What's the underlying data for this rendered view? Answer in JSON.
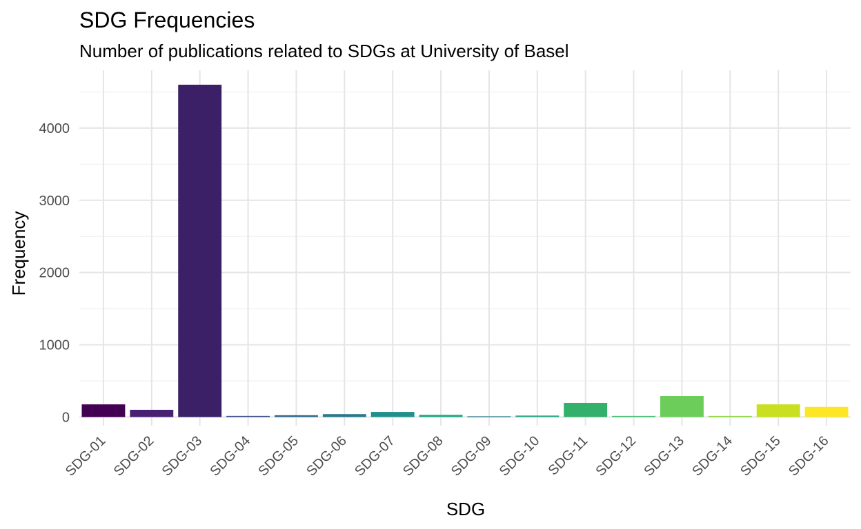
{
  "chart_data": {
    "type": "bar",
    "title": "SDG Frequencies",
    "subtitle": "Number of publications related to SDGs at University of Basel",
    "xlabel": "SDG",
    "ylabel": "Frequency",
    "categories": [
      "SDG-01",
      "SDG-02",
      "SDG-03",
      "SDG-04",
      "SDG-05",
      "SDG-06",
      "SDG-07",
      "SDG-08",
      "SDG-09",
      "SDG-10",
      "SDG-11",
      "SDG-12",
      "SDG-13",
      "SDG-14",
      "SDG-15",
      "SDG-16"
    ],
    "values": [
      175,
      100,
      4600,
      15,
      25,
      40,
      70,
      30,
      10,
      20,
      195,
      15,
      290,
      15,
      175,
      140
    ],
    "colors": [
      "#440154",
      "#482173",
      "#3b1f67",
      "#3d4e8a",
      "#31688e",
      "#2a788e",
      "#21908d",
      "#22a884",
      "#2a788e",
      "#25a885",
      "#33b06b",
      "#43bf71",
      "#6ccd5a",
      "#8fd744",
      "#c8e020",
      "#fde725"
    ],
    "ylim": [
      -120,
      4800
    ],
    "yticks": [
      0,
      1000,
      2000,
      3000,
      4000
    ],
    "yticks_minor": [
      500,
      1500,
      2500,
      3500,
      4500
    ],
    "grid": true,
    "legend": "none"
  }
}
